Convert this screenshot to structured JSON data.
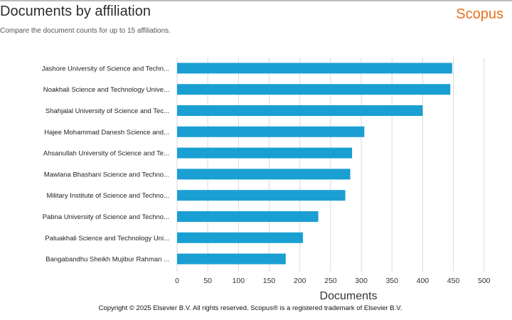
{
  "header": {
    "title": "Documents by affiliation",
    "subtitle": "Compare the document counts for up to 15 affiliations.",
    "brand": "Scopus"
  },
  "footer": {
    "copyright": "Copyright © 2025 Elsevier B.V. All rights reserved. Scopus® is a registered trademark of Elsevier B.V."
  },
  "colors": {
    "bar": "#1a9fd3",
    "grid": "#d9d9d9",
    "brand": "#e9711c"
  },
  "chart_data": {
    "type": "bar",
    "orientation": "horizontal",
    "categories": [
      "Jashore University of Science and Techn...",
      "Noakhali Science and Technology Unive...",
      "Shahjalal University of Science and Tec...",
      "Hajee Mohammad Danesh Science and...",
      "Ahsanullah University of Science and Te...",
      "Mawlana Bhashani Science and Techno...",
      "Military Institute of Science and Techno...",
      "Pabna University of Science and Techno...",
      "Patuakhali Science and Technology Uni...",
      "Bangabandhu Sheikh Mujibur Rahman ..."
    ],
    "values": [
      448,
      445,
      400,
      305,
      285,
      282,
      274,
      230,
      205,
      177
    ],
    "xlabel": "Documents",
    "ylabel": "",
    "xlim": [
      0,
      500
    ],
    "xticks": [
      "0",
      "50",
      "100",
      "150",
      "200",
      "250",
      "300",
      "350",
      "400",
      "450",
      "500"
    ],
    "grid": true
  }
}
